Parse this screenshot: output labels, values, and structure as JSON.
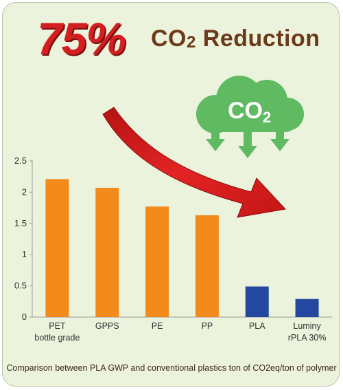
{
  "headline": {
    "percent": "75%",
    "text_main": "CO",
    "text_sub": "2",
    "text_rest": " Reduction"
  },
  "cloud": {
    "label_main": "CO",
    "label_sub": "2"
  },
  "caption": "Comparison between PLA GWP and conventional plastics ton of CO2eq/ton of polymer",
  "colors": {
    "background": "#ecf3dc",
    "conventional_bar": "#f28a1c",
    "pla_bar": "#2447a0",
    "headline_red": "#d31f1f",
    "headline_brown": "#6b3a1a",
    "cloud_green": "#5fba62",
    "arrow_red": "#d81c1c"
  },
  "icons": [
    "co2-cloud-icon",
    "down-arrow-icon",
    "reduction-arrow-icon"
  ],
  "chart_data": {
    "type": "bar",
    "categories": [
      [
        "PET",
        "bottle grade"
      ],
      [
        "GPPS"
      ],
      [
        "PE"
      ],
      [
        "PP"
      ],
      [
        "PLA"
      ],
      [
        "Luminy",
        "rPLA 30%"
      ]
    ],
    "values": [
      2.21,
      2.07,
      1.77,
      1.63,
      0.49,
      0.29
    ],
    "bar_colors": [
      "#f28a1c",
      "#f28a1c",
      "#f28a1c",
      "#f28a1c",
      "#2447a0",
      "#2447a0"
    ],
    "yticks": [
      "0",
      "0.5",
      "1",
      "1.5",
      "2",
      "2.5"
    ],
    "ylim": [
      0,
      2.5
    ],
    "grid": false,
    "title": "",
    "xlabel": "",
    "ylabel": ""
  }
}
